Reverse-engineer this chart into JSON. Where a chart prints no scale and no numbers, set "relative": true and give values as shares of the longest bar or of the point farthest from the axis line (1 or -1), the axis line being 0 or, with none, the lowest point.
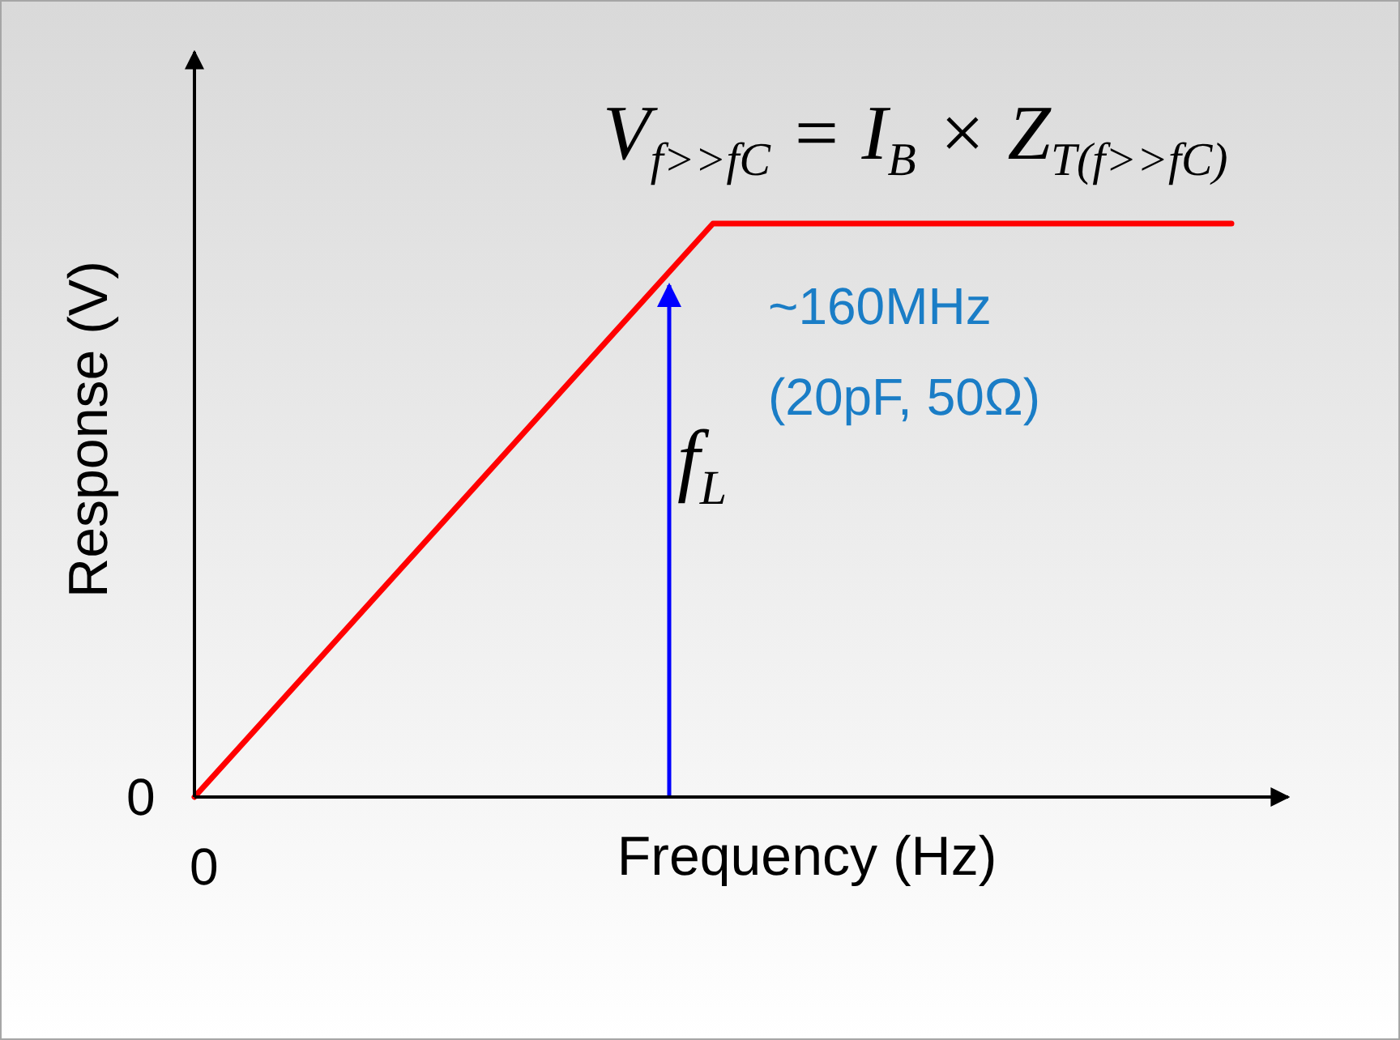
{
  "chart_data": {
    "type": "line",
    "relative": true,
    "xlabel": "Frequency (Hz)",
    "ylabel": "Response (V)",
    "categories": [
      null,
      null,
      null
    ],
    "series": [
      {
        "color": "#ff0000",
        "values": [
          0,
          1,
          1
        ]
      }
    ],
    "annotations": [
      "V$_{f>>fC}$ = I$_{B}$ × Z$_{T(f>>fC)}$",
      "f$_{L}$",
      "~160MHz",
      "(20pF, 50Ω)",
      "0",
      "0"
    ],
    "marker": "none",
    "line_style": "solid"
  }
}
